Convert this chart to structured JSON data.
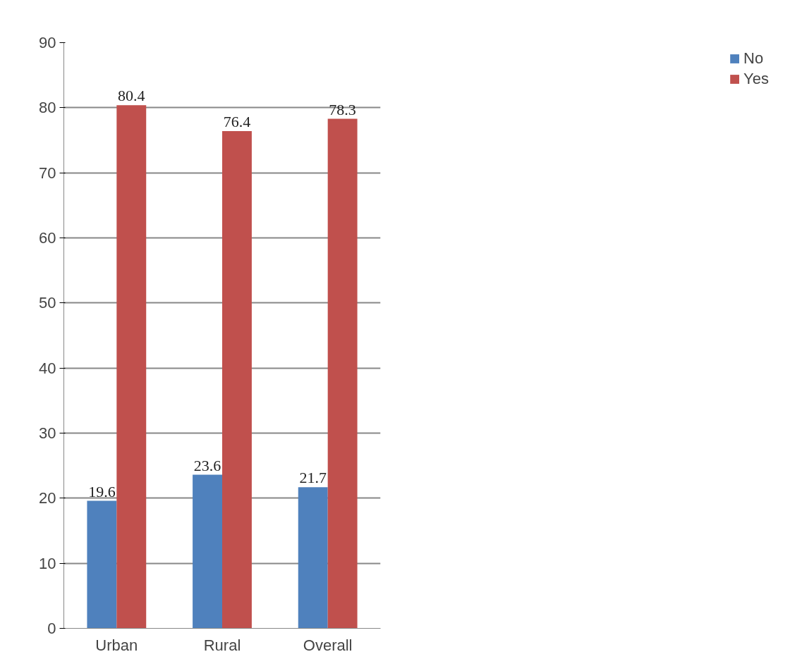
{
  "chart_data": {
    "type": "bar",
    "categories": [
      "Urban",
      "Rural",
      "Overall"
    ],
    "series": [
      {
        "name": "No",
        "color": "#4f81bd",
        "values": [
          19.6,
          23.6,
          21.7
        ]
      },
      {
        "name": "Yes",
        "color": "#c0504d",
        "values": [
          80.4,
          76.4,
          78.3
        ]
      }
    ],
    "ylim": [
      0,
      90
    ],
    "yticks": [
      0,
      10,
      20,
      30,
      40,
      50,
      60,
      70,
      80,
      90
    ],
    "grid": "y",
    "legend": "right",
    "data_labels": true
  }
}
